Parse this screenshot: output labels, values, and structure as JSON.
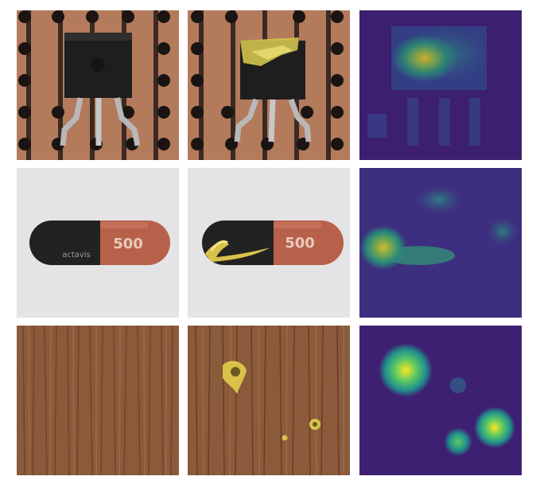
{
  "figure": {
    "rows": [
      {
        "subject": "transistor",
        "capsule_label": ""
      },
      {
        "subject": "capsule",
        "capsule_text": "500",
        "brand_text": "actavis"
      },
      {
        "subject": "wood"
      }
    ],
    "columns": [
      "normal",
      "anomalous",
      "heatmap"
    ],
    "colors": {
      "pcb": "#b47a5c",
      "pcb_hole": "#1a1412",
      "transistor_body": "#1e1e1e",
      "capsule_black": "#222222",
      "capsule_orange": "#b8614a",
      "capsule_bg": "#e4e4e6",
      "wood": "#8a5a3a",
      "defect_gold": "#d9c24a",
      "heat_low": "#440154",
      "heat_mid": "#31688e",
      "heat_high": "#fde725"
    }
  }
}
